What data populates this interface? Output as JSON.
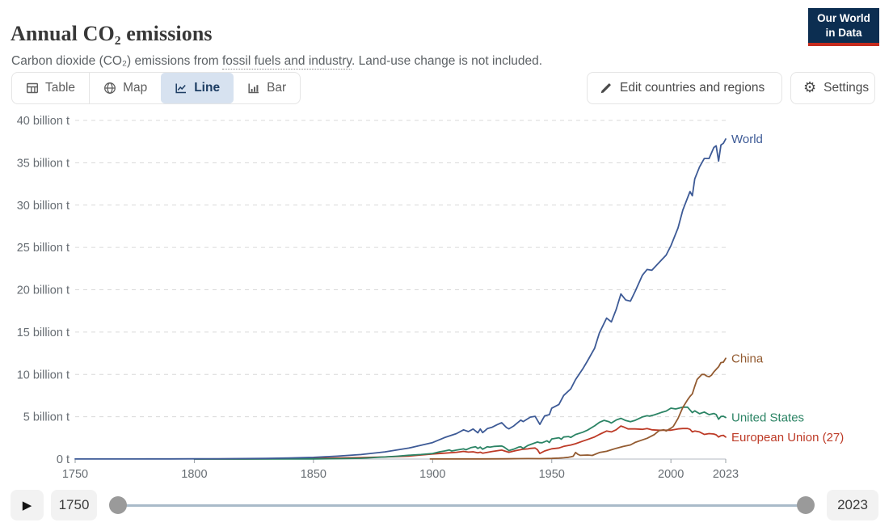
{
  "header": {
    "title": "Annual CO₂ emissions",
    "subtitle_part1": "Carbon dioxide (CO₂) emissions from ",
    "subtitle_link": "fossil fuels and industry",
    "subtitle_part2": ". Land-use change is not included.",
    "logo_line1": "Our World",
    "logo_line2": "in Data"
  },
  "toolbar": {
    "tabs": [
      {
        "label": "Table",
        "icon": "table-icon",
        "active": false
      },
      {
        "label": "Map",
        "icon": "globe-icon",
        "active": false
      },
      {
        "label": "Line",
        "icon": "line-chart-icon",
        "active": true
      },
      {
        "label": "Bar",
        "icon": "bar-chart-icon",
        "active": false
      }
    ],
    "edit_button_label": "Edit countries and regions",
    "settings_button_label": "Settings"
  },
  "icons": {
    "gear": "⚙",
    "play": "▶"
  },
  "timeline": {
    "start_year": "1750",
    "end_year": "2023"
  },
  "colors": {
    "accent_tab_bg": "#d7e2f0",
    "accent_tab_text": "#1d3d63",
    "logo_bg": "#0c2e51",
    "logo_underline": "#c52b1e",
    "grid": "#dadada",
    "axis": "#b3bac1",
    "world": "#3d5a96",
    "china": "#935b31",
    "united_states": "#2c8465",
    "european_union": "#bd3a26"
  },
  "chart_data": {
    "type": "line",
    "title": "Annual CO₂ emissions",
    "unit": "billion tonnes",
    "xlim": [
      1750,
      2023
    ],
    "ylim": [
      0,
      40
    ],
    "grid": "horizontal dashed",
    "legend_position": "end-of-line labels",
    "x_ticks": [
      1750,
      1800,
      1850,
      1900,
      1950,
      2000,
      2023
    ],
    "y_ticks": [
      0,
      5,
      10,
      15,
      20,
      25,
      30,
      35,
      40
    ],
    "y_tick_labels": [
      "0 t",
      "5 billion t",
      "10 billion t",
      "15 billion t",
      "20 billion t",
      "25 billion t",
      "30 billion t",
      "35 billion t",
      "40 billion t"
    ],
    "series": [
      {
        "name": "World",
        "color": "#3d5a96",
        "points": [
          [
            1750,
            0.009
          ],
          [
            1760,
            0.011
          ],
          [
            1770,
            0.013
          ],
          [
            1780,
            0.017
          ],
          [
            1790,
            0.022
          ],
          [
            1800,
            0.03
          ],
          [
            1810,
            0.04
          ],
          [
            1820,
            0.054
          ],
          [
            1830,
            0.081
          ],
          [
            1840,
            0.13
          ],
          [
            1850,
            0.2
          ],
          [
            1860,
            0.34
          ],
          [
            1870,
            0.53
          ],
          [
            1880,
            0.85
          ],
          [
            1890,
            1.3
          ],
          [
            1895,
            1.62
          ],
          [
            1900,
            1.95
          ],
          [
            1905,
            2.54
          ],
          [
            1910,
            3.01
          ],
          [
            1913,
            3.46
          ],
          [
            1915,
            3.25
          ],
          [
            1917,
            3.55
          ],
          [
            1919,
            3.1
          ],
          [
            1920,
            3.55
          ],
          [
            1921,
            3.12
          ],
          [
            1923,
            3.6
          ],
          [
            1925,
            3.76
          ],
          [
            1927,
            4.05
          ],
          [
            1929,
            4.3
          ],
          [
            1931,
            3.72
          ],
          [
            1932,
            3.57
          ],
          [
            1934,
            3.9
          ],
          [
            1937,
            4.6
          ],
          [
            1938,
            4.43
          ],
          [
            1941,
            4.95
          ],
          [
            1943,
            5.05
          ],
          [
            1945,
            4.1
          ],
          [
            1947,
            5.1
          ],
          [
            1949,
            5.25
          ],
          [
            1950,
            6.0
          ],
          [
            1953,
            6.45
          ],
          [
            1955,
            7.51
          ],
          [
            1958,
            8.3
          ],
          [
            1960,
            9.39
          ],
          [
            1963,
            10.65
          ],
          [
            1965,
            11.6
          ],
          [
            1968,
            13.1
          ],
          [
            1970,
            14.9
          ],
          [
            1973,
            16.65
          ],
          [
            1975,
            16.2
          ],
          [
            1977,
            17.65
          ],
          [
            1979,
            19.5
          ],
          [
            1981,
            18.8
          ],
          [
            1983,
            18.65
          ],
          [
            1985,
            19.8
          ],
          [
            1988,
            21.7
          ],
          [
            1990,
            22.4
          ],
          [
            1992,
            22.3
          ],
          [
            1995,
            23.2
          ],
          [
            1998,
            24.1
          ],
          [
            2000,
            25.2
          ],
          [
            2003,
            27.3
          ],
          [
            2005,
            29.4
          ],
          [
            2008,
            31.6
          ],
          [
            2009,
            31.1
          ],
          [
            2010,
            33.1
          ],
          [
            2012,
            34.5
          ],
          [
            2014,
            35.5
          ],
          [
            2016,
            35.5
          ],
          [
            2018,
            36.8
          ],
          [
            2019,
            37.0
          ],
          [
            2020,
            35.2
          ],
          [
            2021,
            37.1
          ],
          [
            2022,
            37.3
          ],
          [
            2023,
            37.8
          ]
        ]
      },
      {
        "name": "China",
        "color": "#935b31",
        "points": [
          [
            1899,
            0.01
          ],
          [
            1910,
            0.016
          ],
          [
            1920,
            0.021
          ],
          [
            1930,
            0.032
          ],
          [
            1936,
            0.05
          ],
          [
            1940,
            0.06
          ],
          [
            1945,
            0.043
          ],
          [
            1950,
            0.079
          ],
          [
            1953,
            0.11
          ],
          [
            1955,
            0.15
          ],
          [
            1957,
            0.21
          ],
          [
            1958,
            0.27
          ],
          [
            1959,
            0.33
          ],
          [
            1960,
            0.78
          ],
          [
            1961,
            0.55
          ],
          [
            1962,
            0.44
          ],
          [
            1965,
            0.48
          ],
          [
            1967,
            0.43
          ],
          [
            1970,
            0.77
          ],
          [
            1973,
            0.92
          ],
          [
            1975,
            1.1
          ],
          [
            1977,
            1.27
          ],
          [
            1980,
            1.49
          ],
          [
            1983,
            1.67
          ],
          [
            1985,
            1.97
          ],
          [
            1988,
            2.26
          ],
          [
            1990,
            2.45
          ],
          [
            1993,
            2.88
          ],
          [
            1995,
            3.35
          ],
          [
            1997,
            3.47
          ],
          [
            1998,
            3.32
          ],
          [
            2000,
            3.65
          ],
          [
            2001,
            3.85
          ],
          [
            2003,
            4.8
          ],
          [
            2005,
            6.1
          ],
          [
            2007,
            7.0
          ],
          [
            2008,
            7.4
          ],
          [
            2009,
            7.7
          ],
          [
            2010,
            8.6
          ],
          [
            2011,
            9.4
          ],
          [
            2013,
            10.0
          ],
          [
            2014,
            10.0
          ],
          [
            2015,
            9.8
          ],
          [
            2016,
            9.72
          ],
          [
            2017,
            9.9
          ],
          [
            2018,
            10.3
          ],
          [
            2019,
            10.6
          ],
          [
            2020,
            10.9
          ],
          [
            2021,
            11.4
          ],
          [
            2022,
            11.45
          ],
          [
            2023,
            11.9
          ]
        ]
      },
      {
        "name": "United States",
        "color": "#2c8465",
        "points": [
          [
            1800,
            0.0003
          ],
          [
            1820,
            0.001
          ],
          [
            1840,
            0.007
          ],
          [
            1850,
            0.02
          ],
          [
            1860,
            0.05
          ],
          [
            1870,
            0.099
          ],
          [
            1880,
            0.25
          ],
          [
            1885,
            0.33
          ],
          [
            1890,
            0.45
          ],
          [
            1895,
            0.53
          ],
          [
            1900,
            0.66
          ],
          [
            1903,
            0.86
          ],
          [
            1905,
            0.95
          ],
          [
            1907,
            1.08
          ],
          [
            1908,
            0.95
          ],
          [
            1910,
            1.06
          ],
          [
            1913,
            1.2
          ],
          [
            1914,
            1.1
          ],
          [
            1916,
            1.35
          ],
          [
            1918,
            1.46
          ],
          [
            1919,
            1.25
          ],
          [
            1920,
            1.41
          ],
          [
            1921,
            1.16
          ],
          [
            1923,
            1.46
          ],
          [
            1924,
            1.4
          ],
          [
            1926,
            1.5
          ],
          [
            1929,
            1.55
          ],
          [
            1930,
            1.41
          ],
          [
            1932,
            1.0
          ],
          [
            1934,
            1.16
          ],
          [
            1936,
            1.4
          ],
          [
            1937,
            1.46
          ],
          [
            1938,
            1.26
          ],
          [
            1940,
            1.61
          ],
          [
            1942,
            1.81
          ],
          [
            1944,
            2.01
          ],
          [
            1945,
            1.94
          ],
          [
            1946,
            1.93
          ],
          [
            1948,
            2.16
          ],
          [
            1949,
            1.96
          ],
          [
            1950,
            2.38
          ],
          [
            1953,
            2.52
          ],
          [
            1954,
            2.35
          ],
          [
            1955,
            2.61
          ],
          [
            1957,
            2.66
          ],
          [
            1958,
            2.56
          ],
          [
            1960,
            2.9
          ],
          [
            1963,
            3.17
          ],
          [
            1965,
            3.42
          ],
          [
            1968,
            3.92
          ],
          [
            1970,
            4.33
          ],
          [
            1972,
            4.57
          ],
          [
            1974,
            4.41
          ],
          [
            1975,
            4.26
          ],
          [
            1977,
            4.61
          ],
          [
            1979,
            4.81
          ],
          [
            1981,
            4.55
          ],
          [
            1983,
            4.41
          ],
          [
            1985,
            4.57
          ],
          [
            1988,
            4.97
          ],
          [
            1990,
            5.12
          ],
          [
            1991,
            5.07
          ],
          [
            1993,
            5.21
          ],
          [
            1996,
            5.51
          ],
          [
            1998,
            5.67
          ],
          [
            2000,
            6.01
          ],
          [
            2002,
            5.92
          ],
          [
            2005,
            6.13
          ],
          [
            2007,
            6.13
          ],
          [
            2009,
            5.49
          ],
          [
            2010,
            5.7
          ],
          [
            2012,
            5.36
          ],
          [
            2014,
            5.56
          ],
          [
            2016,
            5.25
          ],
          [
            2018,
            5.38
          ],
          [
            2019,
            5.26
          ],
          [
            2020,
            4.71
          ],
          [
            2021,
            5.03
          ],
          [
            2022,
            5.06
          ],
          [
            2023,
            4.91
          ]
        ]
      },
      {
        "name": "European Union (27)",
        "color": "#bd3a26",
        "points": [
          [
            1800,
            0.008
          ],
          [
            1820,
            0.02
          ],
          [
            1840,
            0.05
          ],
          [
            1850,
            0.09
          ],
          [
            1860,
            0.13
          ],
          [
            1870,
            0.18
          ],
          [
            1880,
            0.25
          ],
          [
            1890,
            0.35
          ],
          [
            1900,
            0.6
          ],
          [
            1905,
            0.7
          ],
          [
            1910,
            0.8
          ],
          [
            1913,
            0.91
          ],
          [
            1915,
            0.82
          ],
          [
            1917,
            0.86
          ],
          [
            1919,
            0.74
          ],
          [
            1920,
            0.81
          ],
          [
            1921,
            0.7
          ],
          [
            1925,
            0.9
          ],
          [
            1929,
            1.06
          ],
          [
            1932,
            0.8
          ],
          [
            1935,
            1.0
          ],
          [
            1938,
            1.16
          ],
          [
            1940,
            1.2
          ],
          [
            1941,
            1.26
          ],
          [
            1943,
            1.31
          ],
          [
            1944,
            1.1
          ],
          [
            1945,
            0.66
          ],
          [
            1947,
            0.95
          ],
          [
            1950,
            1.21
          ],
          [
            1953,
            1.31
          ],
          [
            1955,
            1.5
          ],
          [
            1958,
            1.66
          ],
          [
            1960,
            1.81
          ],
          [
            1963,
            2.12
          ],
          [
            1965,
            2.31
          ],
          [
            1968,
            2.62
          ],
          [
            1970,
            2.91
          ],
          [
            1973,
            3.31
          ],
          [
            1975,
            3.21
          ],
          [
            1977,
            3.46
          ],
          [
            1979,
            3.9
          ],
          [
            1980,
            3.81
          ],
          [
            1982,
            3.56
          ],
          [
            1985,
            3.56
          ],
          [
            1988,
            3.51
          ],
          [
            1990,
            3.61
          ],
          [
            1992,
            3.46
          ],
          [
            1995,
            3.41
          ],
          [
            1998,
            3.41
          ],
          [
            2000,
            3.41
          ],
          [
            2003,
            3.56
          ],
          [
            2005,
            3.61
          ],
          [
            2007,
            3.61
          ],
          [
            2008,
            3.51
          ],
          [
            2009,
            3.21
          ],
          [
            2010,
            3.31
          ],
          [
            2012,
            3.21
          ],
          [
            2014,
            2.91
          ],
          [
            2016,
            3.01
          ],
          [
            2018,
            2.96
          ],
          [
            2019,
            2.86
          ],
          [
            2020,
            2.61
          ],
          [
            2021,
            2.76
          ],
          [
            2022,
            2.81
          ],
          [
            2023,
            2.6
          ]
        ]
      }
    ]
  }
}
